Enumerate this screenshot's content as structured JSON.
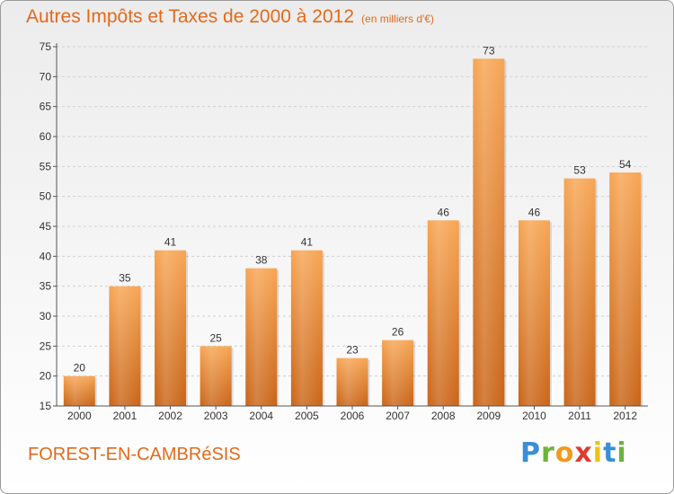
{
  "page": {
    "title": "Autres Impôts et Taxes de 2000 à 2012",
    "subtitle": "(en milliers d'€)",
    "commune": "FOREST-EN-CAMBRéSIS",
    "logo": {
      "letters": [
        "P",
        "r",
        "o",
        "x",
        "i",
        "t",
        "i"
      ],
      "colors": [
        "#3a8fd6",
        "#6cb33f",
        "#f29a1d",
        "#e03a2f",
        "#f2c10f",
        "#3a8fd6",
        "#6cb33f"
      ]
    }
  },
  "colors": {
    "accent": "#e26a1b",
    "bar_top": "#f7a553",
    "bar_bottom": "#c96417",
    "axis": "#555555",
    "grid": "#cfcfcf"
  },
  "chart_data": {
    "type": "bar",
    "title": "Autres Impôts et Taxes de 2000 à 2012",
    "subtitle": "(en milliers d'€)",
    "categories": [
      "2000",
      "2001",
      "2002",
      "2003",
      "2004",
      "2005",
      "2006",
      "2007",
      "2008",
      "2009",
      "2010",
      "2011",
      "2012"
    ],
    "values": [
      20,
      35,
      41,
      25,
      38,
      41,
      23,
      26,
      46,
      73,
      46,
      53,
      54
    ],
    "yticks": [
      15,
      20,
      25,
      30,
      35,
      40,
      45,
      50,
      55,
      60,
      65,
      70,
      75
    ],
    "ylim": [
      15,
      75
    ],
    "grid": "horizontal-dashed",
    "data_labels": true,
    "legend": "none"
  }
}
